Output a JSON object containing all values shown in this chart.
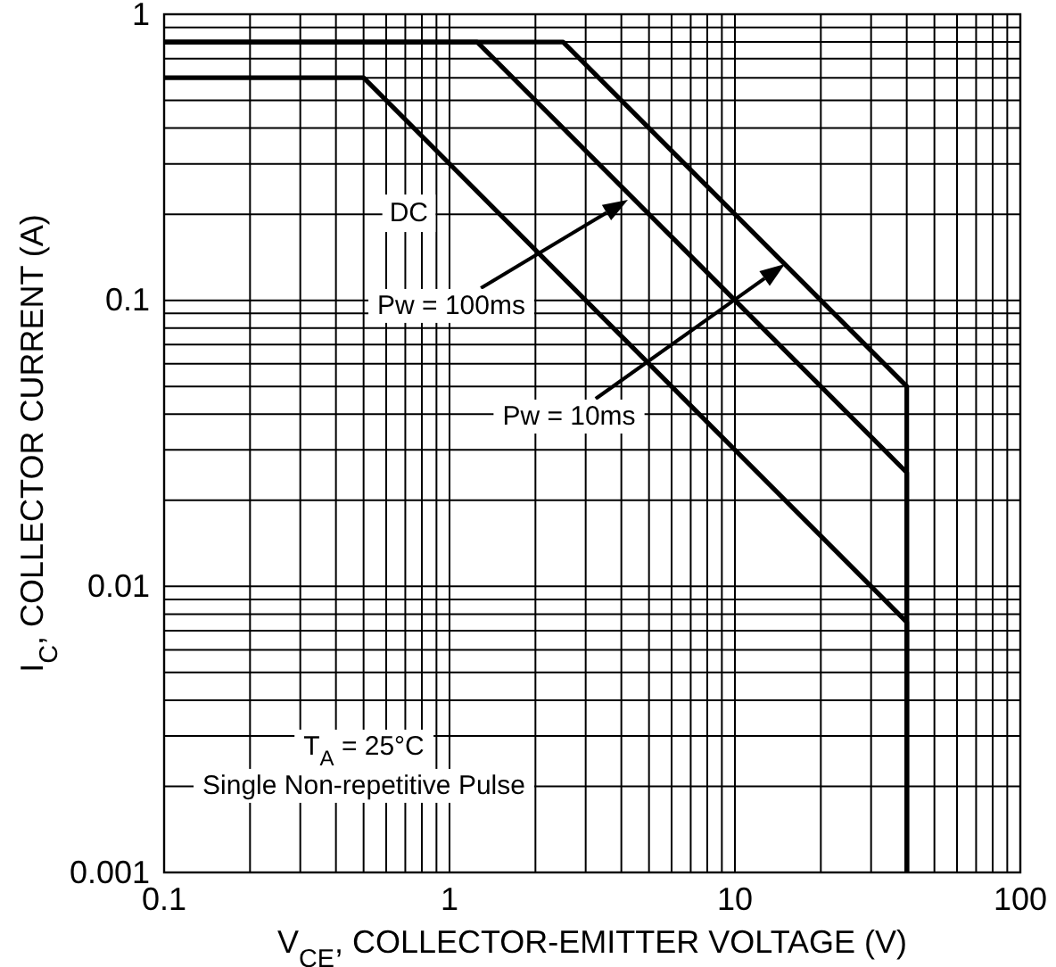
{
  "chart_data": {
    "type": "line",
    "xlabel": "V$_{CE}$, COLLECTOR-EMITTER VOLTAGE (V)",
    "ylabel": "I$_{C}$, COLLECTOR CURRENT (A)",
    "log": "xy",
    "grid": true,
    "line_style": "solid",
    "marker": "none",
    "xlim": [
      0.1,
      100
    ],
    "xticks": [
      0.1,
      1,
      10,
      100
    ],
    "ylim": [
      0.001,
      1
    ],
    "yticks": [
      0.001,
      0.01,
      0.1,
      1
    ],
    "series": [
      {
        "color": "#000000",
        "x": [
          0.1,
          0.5,
          40,
          40
        ],
        "values": [
          0.6,
          0.6,
          0.0075,
          0.001
        ]
      },
      {
        "color": "#000000",
        "x": [
          0.1,
          1.25,
          40,
          40
        ],
        "values": [
          0.8,
          0.8,
          0.025,
          0.001
        ]
      },
      {
        "color": "#000000",
        "x": [
          0.1,
          2.5,
          40,
          40
        ],
        "values": [
          0.8,
          0.8,
          0.05,
          0.001
        ]
      }
    ],
    "annotations": [
      {
        "text": "DC",
        "x": 0.72,
        "y": 0.2
      },
      "Pw = 100ms",
      "Pw = 10ms",
      "T$_{A}$ = 25°C",
      "Single Non-repetitive Pulse"
    ]
  }
}
